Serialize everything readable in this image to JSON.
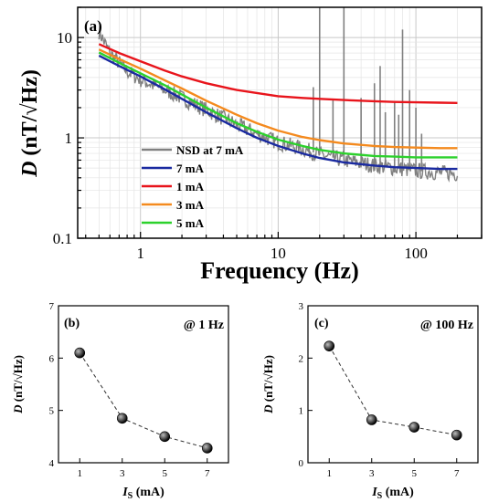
{
  "chart_data": [
    {
      "panel": "(a)",
      "type": "line",
      "xlabel": "Frequency (Hz)",
      "ylabel_main": "D",
      "ylabel_unit": " (nT/√Hz)",
      "xscale": "log",
      "yscale": "log",
      "xlim": [
        0.35,
        300
      ],
      "ylim": [
        0.1,
        20
      ],
      "xticks": [
        {
          "value": 1,
          "label": "1"
        },
        {
          "value": 10,
          "label": "10"
        },
        {
          "value": 100,
          "label": "100"
        }
      ],
      "yticks": [
        {
          "value": 0.1,
          "label": "0.1"
        },
        {
          "value": 1,
          "label": "1"
        },
        {
          "value": 10,
          "label": "10"
        }
      ],
      "grid": true,
      "legend_position": "bottom-center",
      "noise_series": {
        "name": "NSD at 7 mA",
        "color": "#808080",
        "base_points": [
          [
            0.5,
            11.5
          ],
          [
            0.6,
            7.0
          ],
          [
            0.8,
            4.6
          ],
          [
            1,
            3.8
          ],
          [
            1.5,
            3.0
          ],
          [
            2,
            2.5
          ],
          [
            3,
            1.9
          ],
          [
            5,
            1.35
          ],
          [
            7,
            1.1
          ],
          [
            10,
            0.9
          ],
          [
            15,
            0.78
          ],
          [
            20,
            0.68
          ],
          [
            30,
            0.6
          ],
          [
            50,
            0.53
          ],
          [
            70,
            0.5
          ],
          [
            100,
            0.47
          ],
          [
            150,
            0.45
          ],
          [
            200,
            0.44
          ]
        ],
        "spikes": [
          [
            18,
            3.2
          ],
          [
            20,
            20
          ],
          [
            25,
            2.4
          ],
          [
            30,
            20
          ],
          [
            40,
            2.5
          ],
          [
            50,
            3.5
          ],
          [
            55,
            5.2
          ],
          [
            60,
            1.8
          ],
          [
            70,
            2.3
          ],
          [
            75,
            1.7
          ],
          [
            80,
            12.0
          ],
          [
            90,
            3.0
          ],
          [
            100,
            2.0
          ],
          [
            110,
            1.1
          ]
        ]
      },
      "series": [
        {
          "name": "7 mA",
          "color": "#1a2aa0",
          "points": [
            [
              0.5,
              6.6
            ],
            [
              0.7,
              5.2
            ],
            [
              1,
              4.1
            ],
            [
              1.5,
              3.05
            ],
            [
              2,
              2.45
            ],
            [
              3,
              1.8
            ],
            [
              5,
              1.25
            ],
            [
              7,
              1.0
            ],
            [
              10,
              0.83
            ],
            [
              15,
              0.7
            ],
            [
              20,
              0.63
            ],
            [
              30,
              0.57
            ],
            [
              50,
              0.53
            ],
            [
              70,
              0.51
            ],
            [
              100,
              0.5
            ],
            [
              150,
              0.49
            ],
            [
              200,
              0.49
            ]
          ]
        },
        {
          "name": "1 mA",
          "color": "#e8141b",
          "points": [
            [
              0.5,
              8.6
            ],
            [
              0.7,
              7.0
            ],
            [
              1,
              5.8
            ],
            [
              1.5,
              4.7
            ],
            [
              2,
              4.1
            ],
            [
              3,
              3.5
            ],
            [
              5,
              3.0
            ],
            [
              7,
              2.8
            ],
            [
              10,
              2.6
            ],
            [
              15,
              2.5
            ],
            [
              20,
              2.45
            ],
            [
              30,
              2.38
            ],
            [
              50,
              2.32
            ],
            [
              70,
              2.28
            ],
            [
              100,
              2.26
            ],
            [
              150,
              2.24
            ],
            [
              200,
              2.23
            ]
          ]
        },
        {
          "name": "3 mA",
          "color": "#f48a1e",
          "points": [
            [
              0.5,
              7.6
            ],
            [
              0.7,
              6.1
            ],
            [
              1,
              4.9
            ],
            [
              1.5,
              3.75
            ],
            [
              2,
              3.1
            ],
            [
              3,
              2.35
            ],
            [
              5,
              1.7
            ],
            [
              7,
              1.4
            ],
            [
              10,
              1.18
            ],
            [
              15,
              1.02
            ],
            [
              20,
              0.95
            ],
            [
              30,
              0.88
            ],
            [
              50,
              0.83
            ],
            [
              70,
              0.81
            ],
            [
              100,
              0.8
            ],
            [
              150,
              0.79
            ],
            [
              200,
              0.79
            ]
          ]
        },
        {
          "name": "5 mA",
          "color": "#2cd12c",
          "points": [
            [
              0.5,
              7.1
            ],
            [
              0.7,
              5.6
            ],
            [
              1,
              4.4
            ],
            [
              1.5,
              3.35
            ],
            [
              2,
              2.7
            ],
            [
              3,
              2.0
            ],
            [
              5,
              1.4
            ],
            [
              7,
              1.15
            ],
            [
              10,
              0.96
            ],
            [
              15,
              0.83
            ],
            [
              20,
              0.76
            ],
            [
              30,
              0.7
            ],
            [
              50,
              0.66
            ],
            [
              70,
              0.65
            ],
            [
              100,
              0.64
            ],
            [
              150,
              0.64
            ],
            [
              200,
              0.64
            ]
          ]
        }
      ]
    },
    {
      "panel": "(b)",
      "type": "scatter",
      "annotation": "@ 1 Hz",
      "ylabel_main": "D",
      "ylabel_unit": " (nT/√Hz)",
      "xlabel_main": "I",
      "xlabel_sub": "S",
      "xlabel_unit": " (mA)",
      "x": [
        1,
        3,
        5,
        7
      ],
      "y": [
        6.1,
        4.85,
        4.5,
        4.28
      ],
      "xlim": [
        0,
        8
      ],
      "ylim": [
        4,
        7
      ],
      "xticks": [
        1,
        3,
        5,
        7
      ],
      "yticks": [
        4,
        5,
        6,
        7
      ],
      "connector": "dashed"
    },
    {
      "panel": "(c)",
      "type": "scatter",
      "annotation": "@ 100 Hz",
      "ylabel_main": "D",
      "ylabel_unit": " (nT/√Hz)",
      "xlabel_main": "I",
      "xlabel_sub": "S",
      "xlabel_unit": " (mA)",
      "x": [
        1,
        3,
        5,
        7
      ],
      "y": [
        2.23,
        0.82,
        0.68,
        0.53
      ],
      "xlim": [
        0,
        8
      ],
      "ylim": [
        0,
        3
      ],
      "xticks": [
        1,
        3,
        5,
        7
      ],
      "yticks": [
        0,
        1,
        2,
        3
      ],
      "connector": "dashed"
    }
  ]
}
